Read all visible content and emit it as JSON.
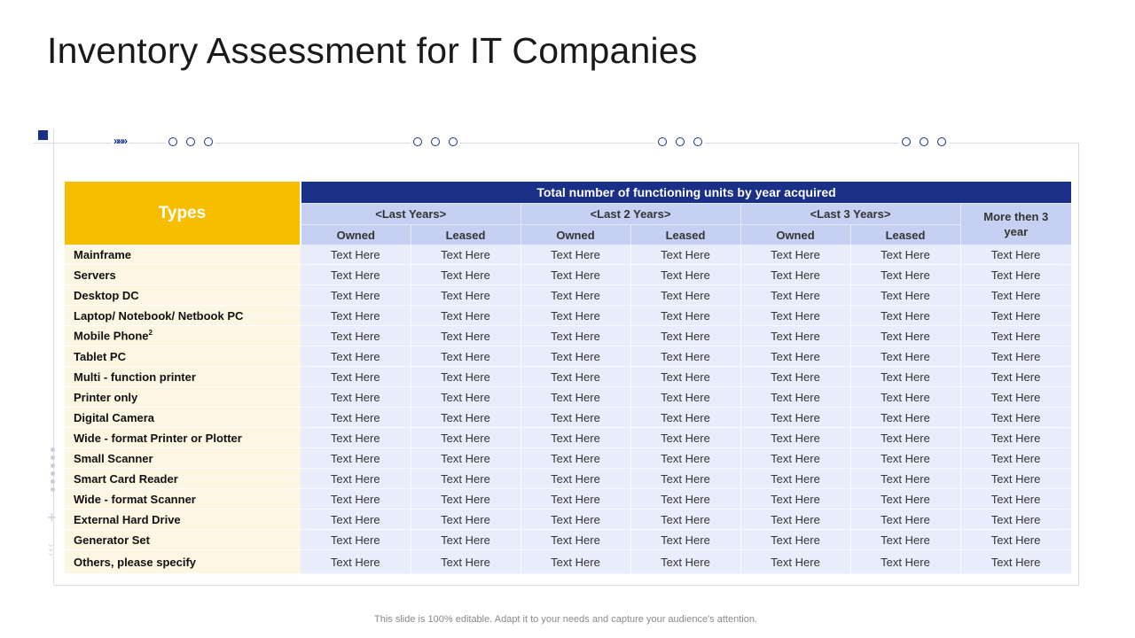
{
  "title": "Inventory Assessment for IT Companies",
  "table": {
    "types_header": "Types",
    "main_header": "Total number of functioning units by year acquired",
    "periods": [
      "<Last Years>",
      "<Last 2 Years>",
      "<Last 3 Years>"
    ],
    "more_header": "More then 3 year",
    "owned_label": "Owned",
    "leased_label": "Leased",
    "rows": [
      {
        "type": "Mainframe",
        "values": [
          "Text Here",
          "Text Here",
          "Text Here",
          "Text Here",
          "Text Here",
          "Text Here",
          "Text Here"
        ]
      },
      {
        "type": "Servers",
        "values": [
          "Text Here",
          "Text Here",
          "Text Here",
          "Text Here",
          "Text Here",
          "Text Here",
          "Text Here"
        ]
      },
      {
        "type": "Desktop DC",
        "values": [
          "Text Here",
          "Text Here",
          "Text Here",
          "Text Here",
          "Text Here",
          "Text Here",
          "Text Here"
        ]
      },
      {
        "type": "Laptop/ Notebook/ Netbook PC",
        "values": [
          "Text Here",
          "Text Here",
          "Text Here",
          "Text Here",
          "Text Here",
          "Text Here",
          "Text Here"
        ]
      },
      {
        "type": "Mobile Phone",
        "sup": "2",
        "values": [
          "Text Here",
          "Text Here",
          "Text Here",
          "Text Here",
          "Text Here",
          "Text Here",
          "Text Here"
        ]
      },
      {
        "type": "Tablet PC",
        "values": [
          "Text Here",
          "Text Here",
          "Text Here",
          "Text Here",
          "Text Here",
          "Text Here",
          "Text Here"
        ]
      },
      {
        "type": "Multi - function printer",
        "values": [
          "Text Here",
          "Text Here",
          "Text Here",
          "Text Here",
          "Text Here",
          "Text Here",
          "Text Here"
        ]
      },
      {
        "type": "Printer only",
        "values": [
          "Text Here",
          "Text Here",
          "Text Here",
          "Text Here",
          "Text Here",
          "Text Here",
          "Text Here"
        ]
      },
      {
        "type": "Digital Camera",
        "values": [
          "Text Here",
          "Text Here",
          "Text Here",
          "Text Here",
          "Text Here",
          "Text Here",
          "Text Here"
        ]
      },
      {
        "type": "Wide - format Printer or Plotter",
        "values": [
          "Text Here",
          "Text Here",
          "Text Here",
          "Text Here",
          "Text Here",
          "Text Here",
          "Text Here"
        ]
      },
      {
        "type": "Small Scanner",
        "values": [
          "Text Here",
          "Text Here",
          "Text Here",
          "Text Here",
          "Text Here",
          "Text Here",
          "Text Here"
        ]
      },
      {
        "type": "Smart Card Reader",
        "values": [
          "Text Here",
          "Text Here",
          "Text Here",
          "Text Here",
          "Text Here",
          "Text Here",
          "Text Here"
        ]
      },
      {
        "type": "Wide - format Scanner",
        "values": [
          "Text Here",
          "Text Here",
          "Text Here",
          "Text Here",
          "Text Here",
          "Text Here",
          "Text Here"
        ]
      },
      {
        "type": "External Hard Drive",
        "values": [
          "Text Here",
          "Text Here",
          "Text Here",
          "Text Here",
          "Text Here",
          "Text Here",
          "Text Here"
        ]
      },
      {
        "type": "Generator Set",
        "values": [
          "Text Here",
          "Text Here",
          "Text Here",
          "Text Here",
          "Text Here",
          "Text Here",
          "Text Here"
        ]
      },
      {
        "type": "Others, please specify",
        "values": [
          "Text Here",
          "Text Here",
          "Text Here",
          "Text Here",
          "Text Here",
          "Text Here",
          "Text Here"
        ]
      }
    ]
  },
  "footer": "This slide is 100% editable. Adapt it to your needs and capture your audience's attention.",
  "colors": {
    "navy": "#1a2f87",
    "yellow": "#f7be00",
    "lavender": "#c6d0f3",
    "cell": "#e8edfb",
    "cream": "#fdf6e2"
  },
  "icons": [
    "square-marker-icon",
    "double-chevron-icon",
    "circle-dot-icon",
    "vertical-dots-icon",
    "plus-icon"
  ]
}
